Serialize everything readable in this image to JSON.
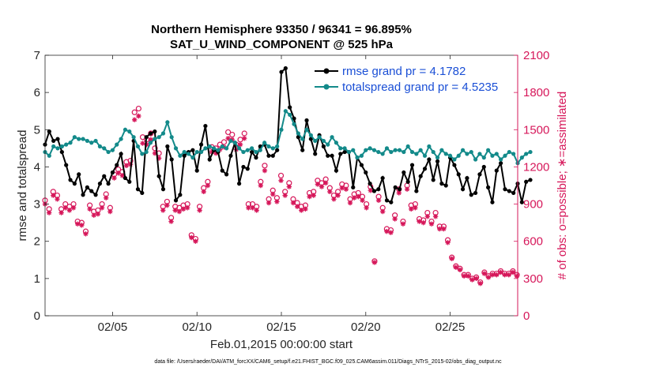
{
  "chart_data": {
    "type": "line",
    "title": "Northern Hemisphere 93350 / 96341 = 96.895%",
    "subtitle": "SAT_U_WIND_COMPONENT @ 525 hPa",
    "xlabel": "Feb.01,2015 00:00:00 start",
    "ylabel_left": "rmse and totalspread",
    "ylabel_right": "# of obs: o=possible; ∗=assimilated",
    "xlim": [
      1,
      29
    ],
    "ylim_left": [
      0,
      7
    ],
    "ylim_right": [
      0,
      2100
    ],
    "x_ticks": [
      5,
      10,
      15,
      20,
      25
    ],
    "x_tick_labels": [
      "02/05",
      "02/10",
      "02/15",
      "02/20",
      "02/25"
    ],
    "y_ticks_left": [
      0,
      1,
      2,
      3,
      4,
      5,
      6,
      7
    ],
    "y_ticks_right": [
      0,
      300,
      600,
      900,
      1200,
      1500,
      1800,
      2100
    ],
    "footnote": "data file: /Users/raeder/DAI/ATM_forcXX/CAM6_setup/f.e21.FHIST_BGC.f09_025.CAM6assim.011/Diags_NTrS_2015-02/obs_diag_output.nc",
    "colors": {
      "rmse": "#000000",
      "spread": "#138a8a",
      "obs": "#d6175a",
      "legend_text": "#1a4fd6"
    },
    "series": [
      {
        "name": "rmse grand pr = 4.1782",
        "color": "#000000",
        "values": [
          4.6,
          4.95,
          4.7,
          4.75,
          4.4,
          4.05,
          3.65,
          3.55,
          3.8,
          3.25,
          3.45,
          3.35,
          3.25,
          3.55,
          3.75,
          3.55,
          3.85,
          4.05,
          4.35,
          3.7,
          3.6,
          4.7,
          3.4,
          3.3,
          4.8,
          4.9,
          4.95,
          3.75,
          3.4,
          4.55,
          4.2,
          3.1,
          3.25,
          4.3,
          4.4,
          4.45,
          3.9,
          4.6,
          5.1,
          4.2,
          4.45,
          4.4,
          3.9,
          3.8,
          4.3,
          4.65,
          3.55,
          4.0,
          3.95,
          4.4,
          4.25,
          4.55,
          4.6,
          4.3,
          4.3,
          4.45,
          6.55,
          6.65,
          5.6,
          5.3,
          4.8,
          4.45,
          5.25,
          4.75,
          4.35,
          4.85,
          4.55,
          4.3,
          4.3,
          3.9,
          4.35,
          4.4,
          4.4,
          3.45,
          4.25,
          4.05,
          3.85,
          3.55,
          3.35,
          3.4,
          3.7,
          3.1,
          3.05,
          3.45,
          3.4,
          3.85,
          3.6,
          4.05,
          3.35,
          3.75,
          3.95,
          4.2,
          3.65,
          4.15,
          3.55,
          3.5,
          4.25,
          4.05,
          3.8,
          3.4,
          3.7,
          3.25,
          3.3,
          3.8,
          4.0,
          3.45,
          3.05,
          3.9,
          4.1,
          3.4,
          3.35,
          3.3,
          3.55,
          3.05,
          3.6,
          3.65
        ],
        "x_start": 1.0,
        "x_step": 0.25
      },
      {
        "name": "totalspread grand pr = 4.5235",
        "color": "#138a8a",
        "values": [
          4.4,
          4.3,
          4.55,
          4.5,
          4.55,
          4.6,
          4.65,
          4.8,
          4.75,
          4.75,
          4.7,
          4.65,
          4.7,
          4.55,
          4.5,
          4.4,
          4.45,
          4.6,
          4.75,
          5.0,
          4.95,
          4.8,
          4.55,
          4.35,
          4.4,
          4.65,
          4.75,
          4.8,
          4.9,
          5.2,
          4.8,
          4.5,
          4.3,
          4.4,
          4.35,
          4.25,
          4.4,
          4.4,
          4.5,
          4.55,
          4.5,
          4.45,
          4.55,
          4.5,
          4.7,
          4.65,
          4.5,
          4.4,
          4.45,
          4.5,
          4.4,
          4.45,
          4.65,
          4.55,
          4.5,
          4.55,
          5.0,
          5.5,
          5.4,
          5.15,
          4.9,
          4.75,
          5.0,
          4.85,
          4.7,
          4.8,
          4.7,
          4.6,
          4.8,
          4.65,
          4.5,
          4.5,
          4.4,
          4.45,
          4.25,
          4.3,
          4.45,
          4.5,
          4.45,
          4.4,
          4.35,
          4.5,
          4.4,
          4.45,
          4.45,
          4.4,
          4.55,
          4.4,
          4.35,
          4.45,
          4.3,
          4.55,
          4.4,
          4.25,
          4.45,
          4.35,
          4.3,
          4.2,
          4.3,
          4.45,
          4.35,
          4.4,
          4.2,
          4.35,
          4.25,
          4.45,
          4.3,
          4.35,
          4.2,
          4.3,
          4.4,
          4.35,
          4.1,
          4.25,
          4.35,
          4.4
        ],
        "x_start": 1.0,
        "x_step": 0.25
      },
      {
        "name": "obs possible (o)",
        "color": "#d6175a",
        "axis": "right",
        "marker": "circle",
        "values": [
          930,
          860,
          1000,
          970,
          860,
          900,
          880,
          900,
          760,
          750,
          680,
          890,
          840,
          850,
          900,
          980,
          870,
          1140,
          1180,
          1160,
          1240,
          1250,
          1640,
          1670,
          1440,
          1420,
          1470,
          1350,
          1310,
          880,
          920,
          790,
          880,
          870,
          890,
          900,
          650,
          620,
          880,
          1030,
          1080,
          1360,
          1350,
          1380,
          1400,
          1480,
          1460,
          1380,
          1420,
          1470,
          900,
          900,
          880,
          1080,
          1210,
          940,
          1010,
          950,
          1130,
          1000,
          1070,
          940,
          910,
          880,
          890,
          990,
          1000,
          1090,
          1070,
          1100,
          1030,
          970,
          1000,
          1060,
          1050,
          940,
          980,
          990,
          960,
          900,
          1040,
          440,
          960,
          870,
          700,
          690,
          810,
          1020,
          760,
          1050,
          890,
          900,
          780,
          770,
          830,
          760,
          830,
          720,
          720,
          610,
          470,
          400,
          380,
          330,
          330,
          300,
          310,
          270,
          350,
          320,
          340,
          340,
          360,
          340,
          340,
          360,
          330,
          320,
          430,
          0
        ],
        "x_start": 1.0,
        "x_step": 0.241
      },
      {
        "name": "obs assimilated (∗)",
        "color": "#d6175a",
        "axis": "right",
        "marker": "star",
        "values": [
          900,
          830,
          970,
          940,
          830,
          870,
          850,
          870,
          740,
          730,
          660,
          860,
          810,
          820,
          870,
          950,
          840,
          1110,
          1150,
          1130,
          1210,
          1220,
          1580,
          1610,
          1390,
          1380,
          1420,
          1310,
          1270,
          850,
          890,
          760,
          850,
          840,
          860,
          870,
          630,
          600,
          850,
          1000,
          1050,
          1320,
          1310,
          1340,
          1360,
          1430,
          1420,
          1340,
          1380,
          1430,
          870,
          870,
          850,
          1050,
          1170,
          910,
          980,
          920,
          1090,
          970,
          1040,
          910,
          880,
          850,
          860,
          960,
          970,
          1060,
          1040,
          1070,
          1000,
          940,
          970,
          1030,
          1020,
          910,
          950,
          960,
          930,
          870,
          1010,
          430,
          930,
          840,
          680,
          670,
          780,
          990,
          740,
          1020,
          860,
          870,
          760,
          750,
          800,
          740,
          800,
          700,
          700,
          590,
          460,
          390,
          370,
          320,
          320,
          290,
          300,
          260,
          340,
          310,
          330,
          330,
          350,
          330,
          330,
          350,
          320,
          310,
          420,
          0
        ],
        "x_start": 1.0,
        "x_step": 0.241
      }
    ]
  }
}
